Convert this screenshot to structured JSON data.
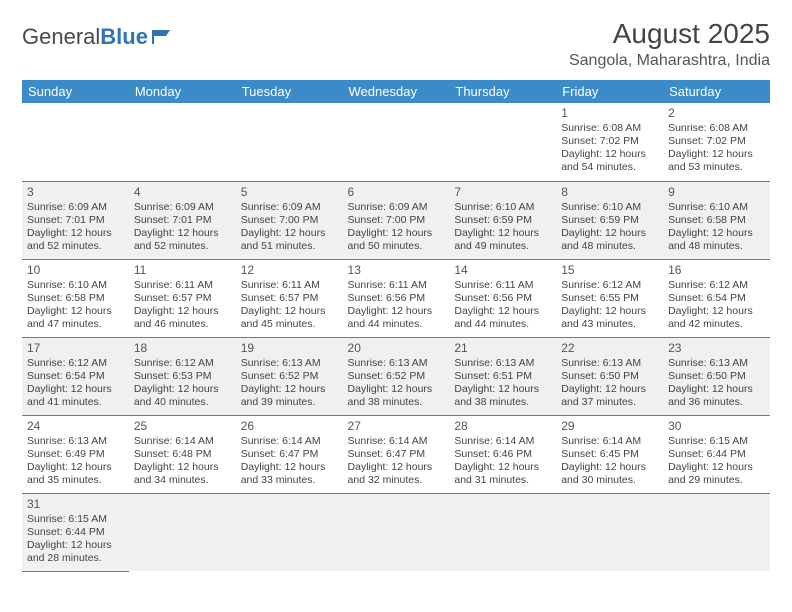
{
  "logo": {
    "part1": "General",
    "part2": "Blue"
  },
  "title": "August 2025",
  "location": "Sangola, Maharashtra, India",
  "colors": {
    "header_bg": "#3b8bc9",
    "header_text": "#ffffff",
    "row_alt_bg": "#f0f0f0",
    "border": "#3b8bc9",
    "logo_blue": "#2e75b6"
  },
  "day_headers": [
    "Sunday",
    "Monday",
    "Tuesday",
    "Wednesday",
    "Thursday",
    "Friday",
    "Saturday"
  ],
  "weeks": [
    [
      null,
      null,
      null,
      null,
      null,
      {
        "n": "1",
        "sr": "Sunrise: 6:08 AM",
        "ss": "Sunset: 7:02 PM",
        "dl": "Daylight: 12 hours and 54 minutes."
      },
      {
        "n": "2",
        "sr": "Sunrise: 6:08 AM",
        "ss": "Sunset: 7:02 PM",
        "dl": "Daylight: 12 hours and 53 minutes."
      }
    ],
    [
      {
        "n": "3",
        "sr": "Sunrise: 6:09 AM",
        "ss": "Sunset: 7:01 PM",
        "dl": "Daylight: 12 hours and 52 minutes."
      },
      {
        "n": "4",
        "sr": "Sunrise: 6:09 AM",
        "ss": "Sunset: 7:01 PM",
        "dl": "Daylight: 12 hours and 52 minutes."
      },
      {
        "n": "5",
        "sr": "Sunrise: 6:09 AM",
        "ss": "Sunset: 7:00 PM",
        "dl": "Daylight: 12 hours and 51 minutes."
      },
      {
        "n": "6",
        "sr": "Sunrise: 6:09 AM",
        "ss": "Sunset: 7:00 PM",
        "dl": "Daylight: 12 hours and 50 minutes."
      },
      {
        "n": "7",
        "sr": "Sunrise: 6:10 AM",
        "ss": "Sunset: 6:59 PM",
        "dl": "Daylight: 12 hours and 49 minutes."
      },
      {
        "n": "8",
        "sr": "Sunrise: 6:10 AM",
        "ss": "Sunset: 6:59 PM",
        "dl": "Daylight: 12 hours and 48 minutes."
      },
      {
        "n": "9",
        "sr": "Sunrise: 6:10 AM",
        "ss": "Sunset: 6:58 PM",
        "dl": "Daylight: 12 hours and 48 minutes."
      }
    ],
    [
      {
        "n": "10",
        "sr": "Sunrise: 6:10 AM",
        "ss": "Sunset: 6:58 PM",
        "dl": "Daylight: 12 hours and 47 minutes."
      },
      {
        "n": "11",
        "sr": "Sunrise: 6:11 AM",
        "ss": "Sunset: 6:57 PM",
        "dl": "Daylight: 12 hours and 46 minutes."
      },
      {
        "n": "12",
        "sr": "Sunrise: 6:11 AM",
        "ss": "Sunset: 6:57 PM",
        "dl": "Daylight: 12 hours and 45 minutes."
      },
      {
        "n": "13",
        "sr": "Sunrise: 6:11 AM",
        "ss": "Sunset: 6:56 PM",
        "dl": "Daylight: 12 hours and 44 minutes."
      },
      {
        "n": "14",
        "sr": "Sunrise: 6:11 AM",
        "ss": "Sunset: 6:56 PM",
        "dl": "Daylight: 12 hours and 44 minutes."
      },
      {
        "n": "15",
        "sr": "Sunrise: 6:12 AM",
        "ss": "Sunset: 6:55 PM",
        "dl": "Daylight: 12 hours and 43 minutes."
      },
      {
        "n": "16",
        "sr": "Sunrise: 6:12 AM",
        "ss": "Sunset: 6:54 PM",
        "dl": "Daylight: 12 hours and 42 minutes."
      }
    ],
    [
      {
        "n": "17",
        "sr": "Sunrise: 6:12 AM",
        "ss": "Sunset: 6:54 PM",
        "dl": "Daylight: 12 hours and 41 minutes."
      },
      {
        "n": "18",
        "sr": "Sunrise: 6:12 AM",
        "ss": "Sunset: 6:53 PM",
        "dl": "Daylight: 12 hours and 40 minutes."
      },
      {
        "n": "19",
        "sr": "Sunrise: 6:13 AM",
        "ss": "Sunset: 6:52 PM",
        "dl": "Daylight: 12 hours and 39 minutes."
      },
      {
        "n": "20",
        "sr": "Sunrise: 6:13 AM",
        "ss": "Sunset: 6:52 PM",
        "dl": "Daylight: 12 hours and 38 minutes."
      },
      {
        "n": "21",
        "sr": "Sunrise: 6:13 AM",
        "ss": "Sunset: 6:51 PM",
        "dl": "Daylight: 12 hours and 38 minutes."
      },
      {
        "n": "22",
        "sr": "Sunrise: 6:13 AM",
        "ss": "Sunset: 6:50 PM",
        "dl": "Daylight: 12 hours and 37 minutes."
      },
      {
        "n": "23",
        "sr": "Sunrise: 6:13 AM",
        "ss": "Sunset: 6:50 PM",
        "dl": "Daylight: 12 hours and 36 minutes."
      }
    ],
    [
      {
        "n": "24",
        "sr": "Sunrise: 6:13 AM",
        "ss": "Sunset: 6:49 PM",
        "dl": "Daylight: 12 hours and 35 minutes."
      },
      {
        "n": "25",
        "sr": "Sunrise: 6:14 AM",
        "ss": "Sunset: 6:48 PM",
        "dl": "Daylight: 12 hours and 34 minutes."
      },
      {
        "n": "26",
        "sr": "Sunrise: 6:14 AM",
        "ss": "Sunset: 6:47 PM",
        "dl": "Daylight: 12 hours and 33 minutes."
      },
      {
        "n": "27",
        "sr": "Sunrise: 6:14 AM",
        "ss": "Sunset: 6:47 PM",
        "dl": "Daylight: 12 hours and 32 minutes."
      },
      {
        "n": "28",
        "sr": "Sunrise: 6:14 AM",
        "ss": "Sunset: 6:46 PM",
        "dl": "Daylight: 12 hours and 31 minutes."
      },
      {
        "n": "29",
        "sr": "Sunrise: 6:14 AM",
        "ss": "Sunset: 6:45 PM",
        "dl": "Daylight: 12 hours and 30 minutes."
      },
      {
        "n": "30",
        "sr": "Sunrise: 6:15 AM",
        "ss": "Sunset: 6:44 PM",
        "dl": "Daylight: 12 hours and 29 minutes."
      }
    ],
    [
      {
        "n": "31",
        "sr": "Sunrise: 6:15 AM",
        "ss": "Sunset: 6:44 PM",
        "dl": "Daylight: 12 hours and 28 minutes."
      },
      null,
      null,
      null,
      null,
      null,
      null
    ]
  ]
}
